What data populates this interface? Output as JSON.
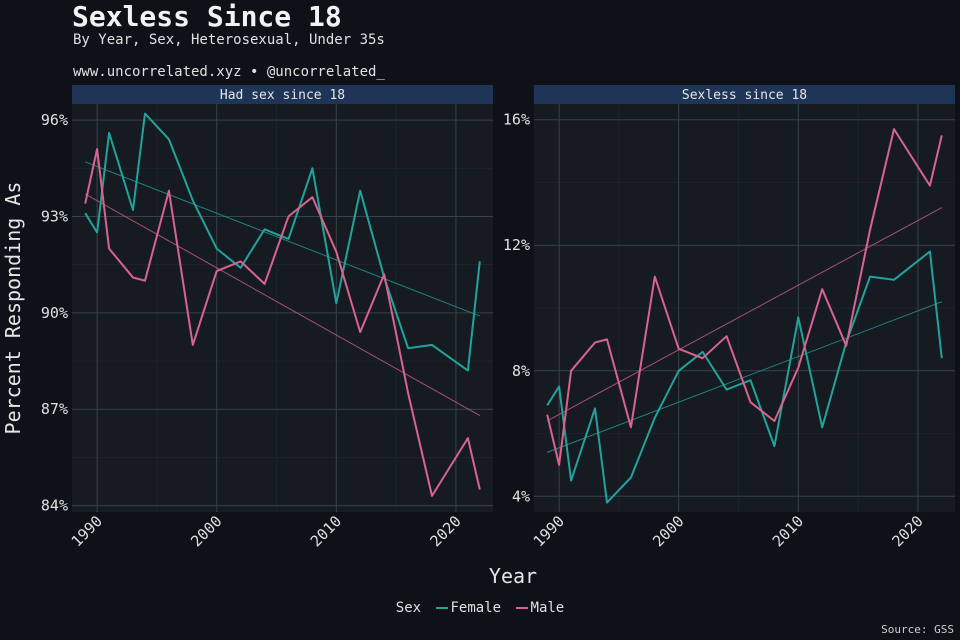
{
  "title": "Sexless Since 18",
  "subtitle": "By Year, Sex, Heterosexual, Under 35s",
  "caption": "www.uncorrelated.xyz • @uncorrelated_",
  "source": "Source: GSS",
  "colors": {
    "Female": "#21a39b",
    "Male": "#d9638f",
    "background": "#0e1117",
    "panel": "#161b22",
    "strip": "#1f3557"
  },
  "chart_data": [
    {
      "type": "line",
      "panel_title": "Had sex since 18",
      "xlabel": "Year",
      "ylabel": "Percent Responding As",
      "xlim": [
        1987.9,
        2023.1
      ],
      "ylim": [
        83.8,
        96.5
      ],
      "x_ticks": [
        1990,
        2000,
        2010,
        2020
      ],
      "x_tick_labels": [
        "1990",
        "2000",
        "2010",
        "2020"
      ],
      "y_ticks": [
        84,
        87,
        90,
        93,
        96
      ],
      "y_tick_labels": [
        "84%",
        "87%",
        "90%",
        "93%",
        "96%"
      ],
      "series": [
        {
          "name": "Female",
          "x": [
            1989,
            1990,
            1991,
            1993,
            1994,
            1996,
            1998,
            2000,
            2002,
            2004,
            2006,
            2008,
            2010,
            2012,
            2014,
            2016,
            2018,
            2021,
            2022
          ],
          "y": [
            93.1,
            92.5,
            95.6,
            93.2,
            96.2,
            95.4,
            93.5,
            92.0,
            91.4,
            92.6,
            92.3,
            94.5,
            90.3,
            93.8,
            91.1,
            88.9,
            89.0,
            88.2,
            91.6
          ]
        },
        {
          "name": "Male",
          "x": [
            1989,
            1990,
            1991,
            1993,
            1994,
            1996,
            1998,
            2000,
            2002,
            2004,
            2006,
            2008,
            2010,
            2012,
            2014,
            2016,
            2018,
            2021,
            2022
          ],
          "y": [
            93.4,
            95.1,
            92.0,
            91.1,
            91.0,
            93.8,
            89.0,
            91.3,
            91.6,
            90.9,
            93.0,
            93.6,
            91.9,
            89.4,
            91.2,
            87.5,
            84.3,
            86.1,
            84.5
          ]
        }
      ],
      "trend": [
        {
          "name": "Female",
          "x": [
            1989,
            2022
          ],
          "y": [
            94.7,
            89.9
          ]
        },
        {
          "name": "Male",
          "x": [
            1989,
            2022
          ],
          "y": [
            93.7,
            86.8
          ]
        }
      ]
    },
    {
      "type": "line",
      "panel_title": "Sexless since 18",
      "xlabel": "Year",
      "ylabel": "Percent Responding As",
      "xlim": [
        1987.9,
        2023.1
      ],
      "ylim": [
        3.5,
        16.5
      ],
      "x_ticks": [
        1990,
        2000,
        2010,
        2020
      ],
      "x_tick_labels": [
        "1990",
        "2000",
        "2010",
        "2020"
      ],
      "y_ticks": [
        4,
        8,
        12,
        16
      ],
      "y_tick_labels": [
        "4%",
        "8%",
        "12%",
        "16%"
      ],
      "series": [
        {
          "name": "Female",
          "x": [
            1989,
            1990,
            1991,
            1993,
            1994,
            1996,
            1998,
            2000,
            2002,
            2004,
            2006,
            2008,
            2010,
            2012,
            2014,
            2016,
            2018,
            2021,
            2022
          ],
          "y": [
            6.9,
            7.5,
            4.5,
            6.8,
            3.8,
            4.6,
            6.5,
            8.0,
            8.6,
            7.4,
            7.7,
            5.6,
            9.7,
            6.2,
            8.9,
            11.0,
            10.9,
            11.8,
            8.4
          ]
        },
        {
          "name": "Male",
          "x": [
            1989,
            1990,
            1991,
            1993,
            1994,
            1996,
            1998,
            2000,
            2002,
            2004,
            2006,
            2008,
            2010,
            2012,
            2014,
            2016,
            2018,
            2021,
            2022
          ],
          "y": [
            6.6,
            5.0,
            8.0,
            8.9,
            9.0,
            6.2,
            11.0,
            8.7,
            8.4,
            9.1,
            7.0,
            6.4,
            8.1,
            10.6,
            8.8,
            12.5,
            15.7,
            13.9,
            15.5
          ]
        }
      ],
      "trend": [
        {
          "name": "Female",
          "x": [
            1989,
            2022
          ],
          "y": [
            5.4,
            10.2
          ]
        },
        {
          "name": "Male",
          "x": [
            1989,
            2022
          ],
          "y": [
            6.4,
            13.2
          ]
        }
      ]
    }
  ],
  "legend": {
    "title": "Sex",
    "items": [
      "Female",
      "Male"
    ]
  }
}
